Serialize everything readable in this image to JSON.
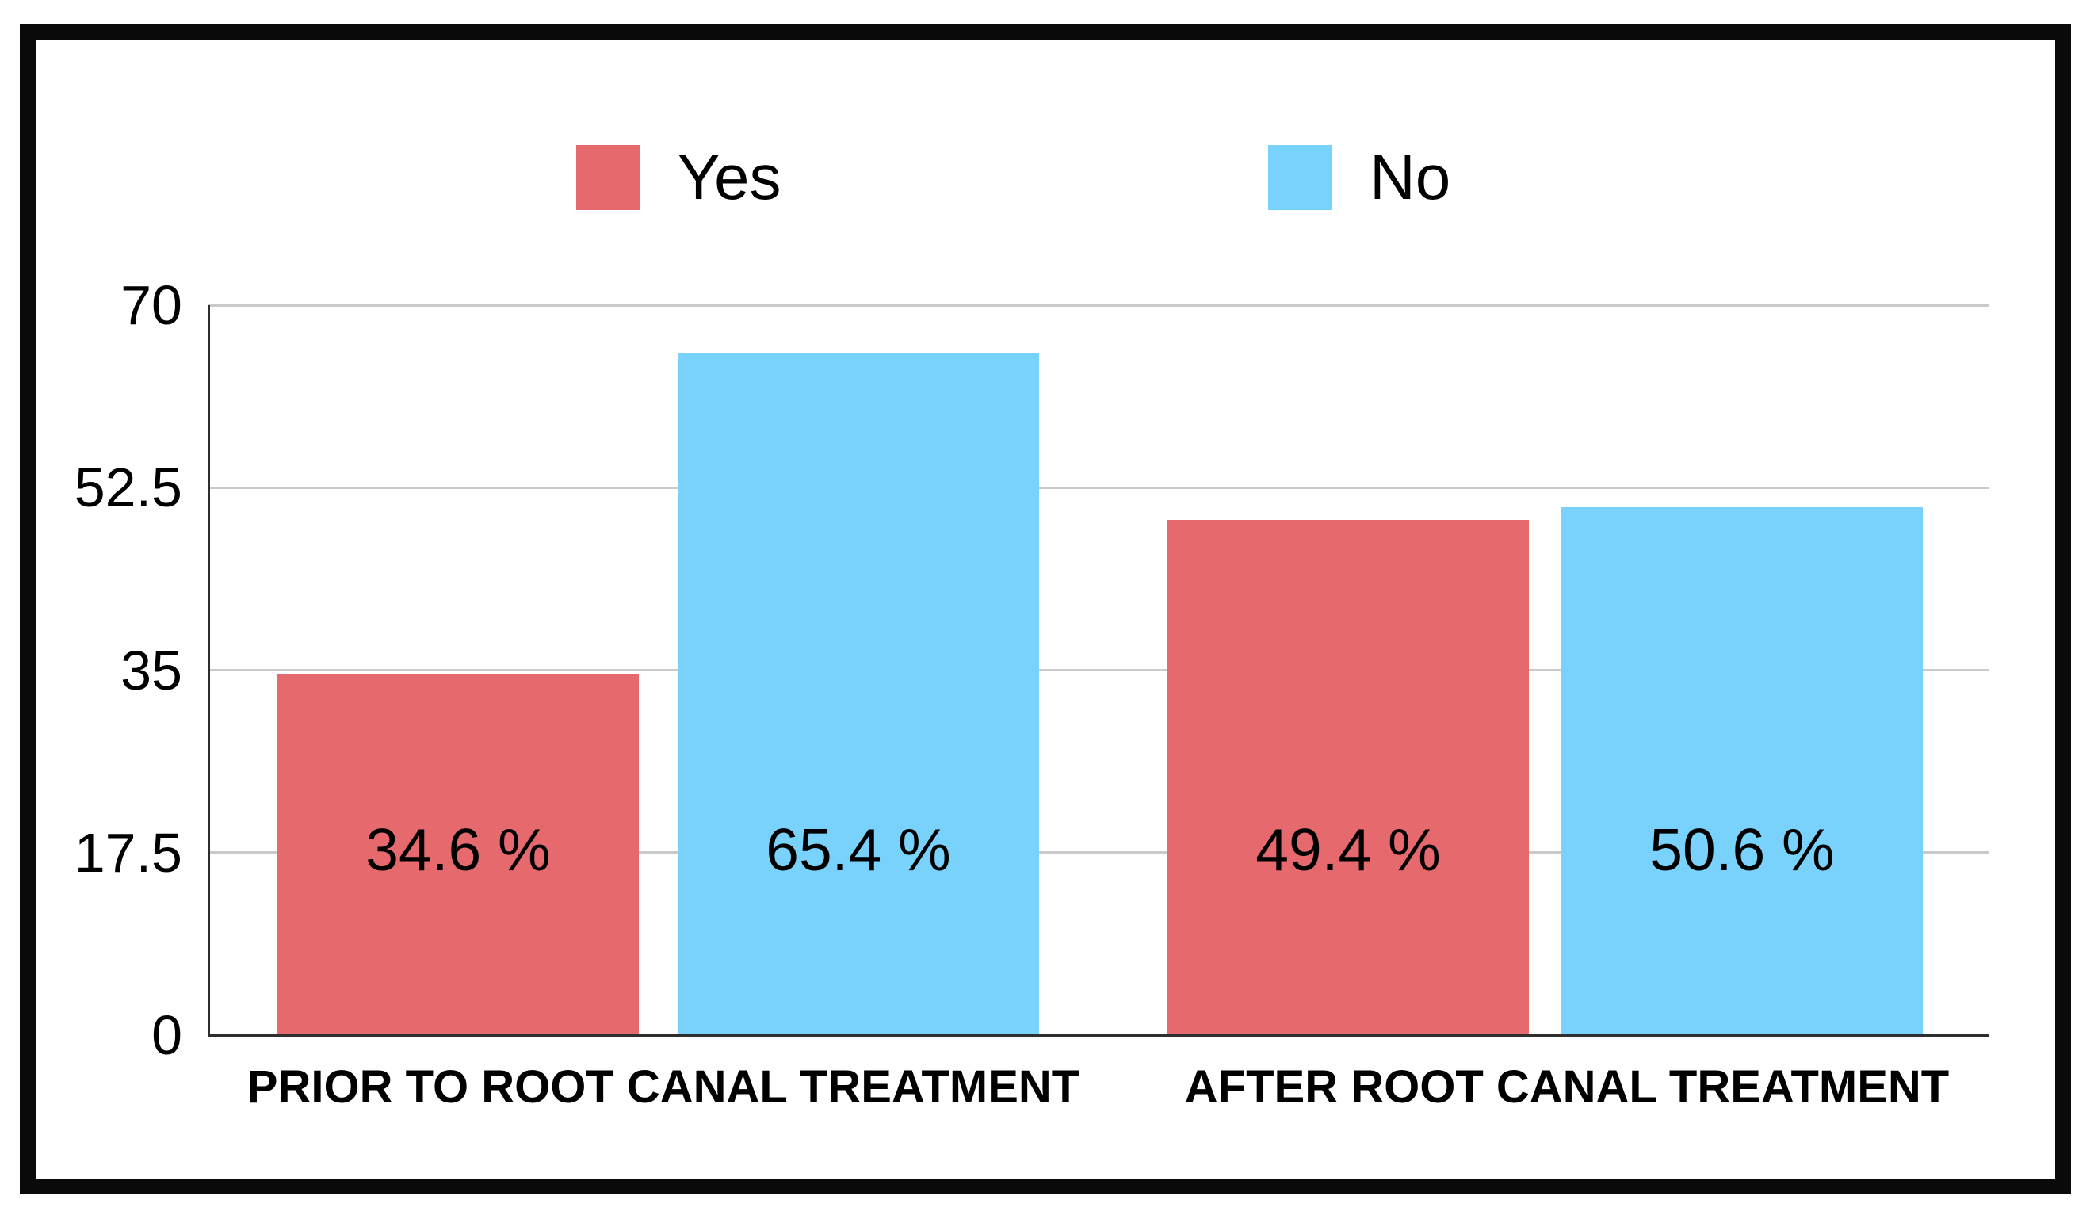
{
  "chart_data": {
    "type": "bar",
    "title": "",
    "categories": [
      "PRIOR TO ROOT CANAL TREATMENT",
      "AFTER ROOT CANAL TREATMENT"
    ],
    "series": [
      {
        "name": "Yes",
        "color": "#e6696e",
        "values": [
          34.6,
          49.4
        ],
        "value_labels": [
          "34.6 %",
          "49.4 %"
        ]
      },
      {
        "name": "No",
        "color": "#79d2fb",
        "values": [
          65.4,
          50.6
        ],
        "value_labels": [
          "65.4 %",
          "50.6 %"
        ]
      }
    ],
    "xlabel": "",
    "ylabel": "",
    "ylim": [
      0,
      70
    ],
    "yticks": [
      0,
      17.5,
      35,
      52.5,
      70
    ],
    "ytick_labels": [
      "0",
      "17.5",
      "35",
      "52.5",
      "70"
    ],
    "grid": true,
    "legend_position": "top",
    "value_label_position": "inside-bar"
  },
  "style_colors": {
    "series_yes": "#e6696e",
    "series_no": "#79d2fb",
    "gridline": "#cacaca",
    "axis_line": "#2e2e2e",
    "text": "#000000",
    "frame_border": "#0a0a0a",
    "background": "#ffffff"
  }
}
